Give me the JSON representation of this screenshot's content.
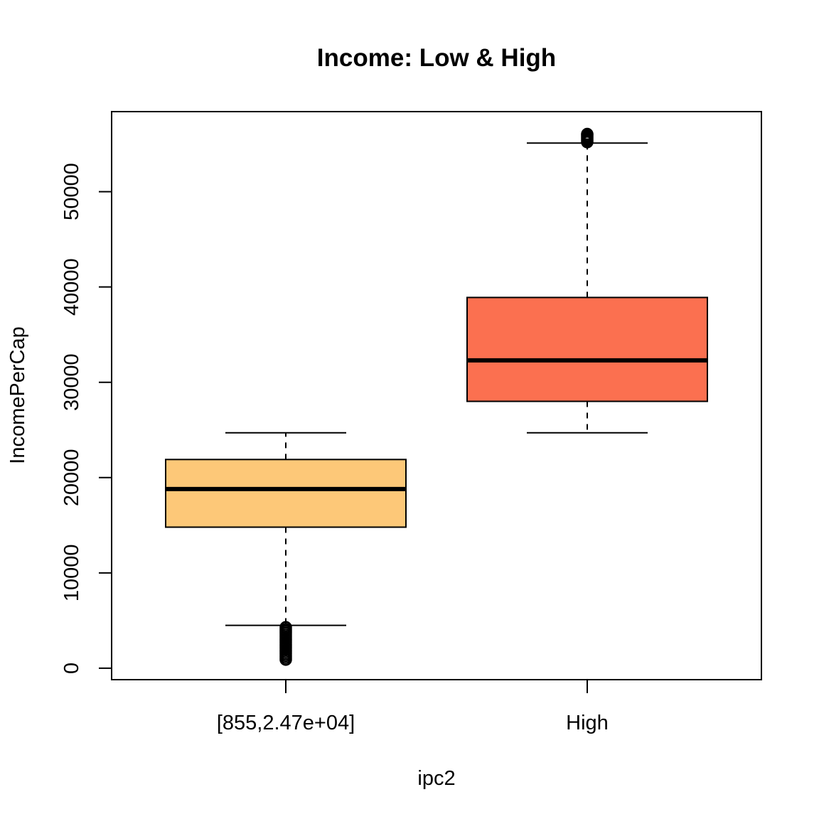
{
  "chart_data": {
    "type": "boxplot",
    "title": "Income: Low & High",
    "xlabel": "ipc2",
    "ylabel": "IncomePerCap",
    "categories": [
      "[855,2.47e+04]",
      "High"
    ],
    "ylim": [
      -1200,
      58400
    ],
    "yticks": [
      0,
      10000,
      20000,
      30000,
      40000,
      50000
    ],
    "ytick_labels": [
      "0",
      "10000",
      "20000",
      "30000",
      "40000",
      "50000"
    ],
    "grid": false,
    "legend": "none",
    "boxes": [
      {
        "category": "[855,2.47e+04]",
        "color": "#FDC878",
        "whisker_low": 4500,
        "q1": 14800,
        "median": 18800,
        "q3": 21900,
        "whisker_high": 24700,
        "outliers": [
          900,
          1100,
          1300,
          1500,
          1700,
          1900,
          2100,
          2300,
          2500,
          2700,
          2900,
          3100,
          3300,
          3500,
          3700,
          3900,
          4100,
          4300
        ]
      },
      {
        "category": "High",
        "color": "#FB7050",
        "whisker_low": 24700,
        "q1": 28000,
        "median": 32300,
        "q3": 38900,
        "whisker_high": 55100,
        "outliers": [
          55200,
          55350,
          55500,
          55650,
          55800,
          55950,
          56050
        ]
      }
    ]
  }
}
